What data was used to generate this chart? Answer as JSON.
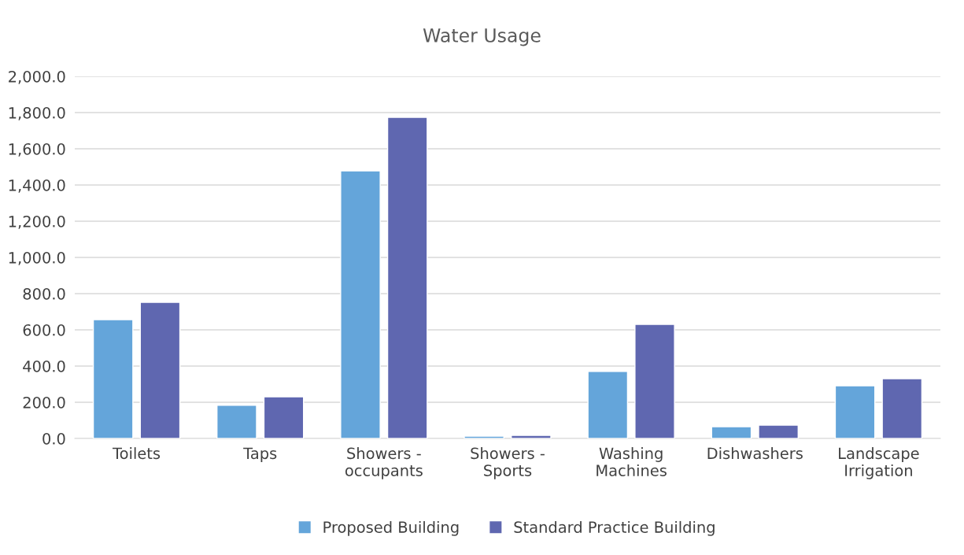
{
  "chart_data": {
    "type": "bar",
    "title": "Water Usage",
    "categories": [
      "Toilets",
      "Taps",
      "Showers - occupants",
      "Showers - Sports",
      "Washing Machines",
      "Dishwashers",
      "Landscape Irrigation"
    ],
    "series": [
      {
        "name": "Proposed Building",
        "color": "#64a5da",
        "values": [
          656,
          183,
          1478,
          13,
          370,
          65,
          291
        ]
      },
      {
        "name": "Standard Practice Building",
        "color": "#5f67b0",
        "values": [
          752,
          230,
          1774,
          17,
          630,
          74,
          330
        ]
      }
    ],
    "ylim": [
      0,
      2000
    ],
    "yticks": [
      {
        "value": 0,
        "label": "0.0"
      },
      {
        "value": 200,
        "label": "200.0"
      },
      {
        "value": 400,
        "label": "400.0"
      },
      {
        "value": 600,
        "label": "600.0"
      },
      {
        "value": 800,
        "label": "800.0"
      },
      {
        "value": 1000,
        "label": "1,000.0"
      },
      {
        "value": 1200,
        "label": "1,200.0"
      },
      {
        "value": 1400,
        "label": "1,400.0"
      },
      {
        "value": 1600,
        "label": "1,600.0"
      },
      {
        "value": 1800,
        "label": "1,800.0"
      },
      {
        "value": 2000,
        "label": "2,000.0"
      }
    ],
    "grid": "y",
    "legend": "bottom"
  }
}
